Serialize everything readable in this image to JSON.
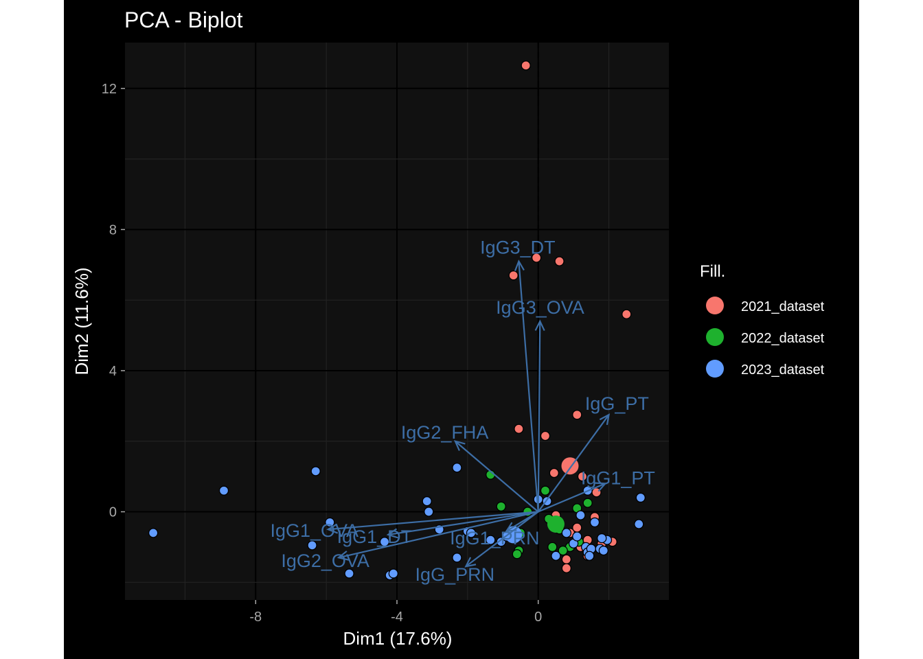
{
  "chart_data": {
    "type": "scatter",
    "title": "PCA - Biplot",
    "xlabel": "Dim1 (17.6%)",
    "ylabel": "Dim2 (11.6%)",
    "xlim": [
      -11.7,
      3.7
    ],
    "ylim": [
      -2.5,
      13.3
    ],
    "xticks": [
      -8,
      -4,
      0
    ],
    "xtick_labels": [
      "-8",
      "-4",
      "0"
    ],
    "yticks": [
      0,
      4,
      8,
      12
    ],
    "ytick_labels": [
      "0",
      "4",
      "8",
      "12"
    ],
    "grid": true,
    "legend": {
      "title": "Fill.",
      "position": "right",
      "entries": [
        "2021_dataset",
        "2022_dataset",
        "2023_dataset"
      ]
    },
    "colors": {
      "2021_dataset": "#f8766d",
      "2022_dataset": "#1eb12e",
      "2023_dataset": "#619cff",
      "arrow": "#3d6ea6",
      "panel": "#111111",
      "grid": "#222222"
    },
    "series": [
      {
        "name": "2021_dataset",
        "points": [
          [
            -0.35,
            12.65
          ],
          [
            -0.05,
            7.2
          ],
          [
            0.6,
            7.1
          ],
          [
            -0.7,
            6.7
          ],
          [
            2.5,
            5.6
          ],
          [
            1.1,
            2.75
          ],
          [
            -0.55,
            2.35
          ],
          [
            0.2,
            2.15
          ],
          [
            0.45,
            1.1
          ],
          [
            1.25,
            1.0
          ],
          [
            1.65,
            0.55
          ],
          [
            0.5,
            -0.1
          ],
          [
            1.6,
            -0.15
          ],
          [
            0.9,
            -0.6
          ],
          [
            1.4,
            -0.8
          ],
          [
            1.2,
            -1.0
          ],
          [
            1.8,
            -0.9
          ],
          [
            2.1,
            -0.85
          ],
          [
            0.8,
            -1.35
          ],
          [
            1.4,
            -1.25
          ],
          [
            0.8,
            -1.6
          ],
          [
            1.1,
            -0.45
          ]
        ],
        "centroid": [
          0.9,
          1.3
        ]
      },
      {
        "name": "2022_dataset",
        "points": [
          [
            -1.35,
            1.05
          ],
          [
            0.2,
            0.6
          ],
          [
            -1.05,
            0.15
          ],
          [
            -0.3,
            0.0
          ],
          [
            0.3,
            -0.2
          ],
          [
            1.1,
            0.1
          ],
          [
            1.4,
            0.25
          ],
          [
            0.6,
            -0.5
          ],
          [
            -0.55,
            -1.1
          ],
          [
            -0.6,
            -1.2
          ],
          [
            -0.5,
            -0.6
          ],
          [
            0.9,
            -1.0
          ],
          [
            0.7,
            -1.1
          ],
          [
            0.4,
            -1.0
          ],
          [
            1.15,
            -0.85
          ]
        ],
        "centroid": [
          0.5,
          -0.35
        ]
      },
      {
        "name": "2023_dataset",
        "points": [
          [
            -10.9,
            -0.6
          ],
          [
            -8.9,
            0.6
          ],
          [
            -6.3,
            1.15
          ],
          [
            -2.3,
            1.25
          ],
          [
            -3.15,
            0.3
          ],
          [
            -3.1,
            0.0
          ],
          [
            -5.9,
            -0.3
          ],
          [
            -2.8,
            -0.5
          ],
          [
            -2.0,
            -0.55
          ],
          [
            -1.9,
            -0.6
          ],
          [
            -6.4,
            -0.95
          ],
          [
            -4.35,
            -0.85
          ],
          [
            -2.3,
            -1.3
          ],
          [
            -5.35,
            -1.75
          ],
          [
            -4.2,
            -1.8
          ],
          [
            -4.1,
            -1.75
          ],
          [
            -1.35,
            -0.8
          ],
          [
            -1.05,
            -0.85
          ],
          [
            -0.9,
            -0.7
          ],
          [
            0.0,
            0.35
          ],
          [
            0.25,
            0.3
          ],
          [
            1.4,
            0.6
          ],
          [
            1.2,
            -0.1
          ],
          [
            2.9,
            0.4
          ],
          [
            2.85,
            -0.35
          ],
          [
            1.6,
            -0.3
          ],
          [
            0.5,
            -1.25
          ],
          [
            1.0,
            -0.9
          ],
          [
            1.35,
            -1.0
          ],
          [
            1.4,
            -1.15
          ],
          [
            1.5,
            -1.05
          ],
          [
            1.75,
            -1.05
          ],
          [
            1.85,
            -1.1
          ],
          [
            1.95,
            -0.8
          ],
          [
            1.8,
            -0.75
          ],
          [
            1.45,
            -1.25
          ],
          [
            1.1,
            -0.7
          ],
          [
            0.8,
            -0.6
          ]
        ],
        "centroid": [
          -0.7,
          -0.65
        ]
      }
    ],
    "variables": [
      {
        "name": "IgG3_DT",
        "x": -0.55,
        "y": 7.1
      },
      {
        "name": "IgG3_OVA",
        "x": 0.05,
        "y": 5.4
      },
      {
        "name": "IgG_PT",
        "x": 2.0,
        "y": 2.75
      },
      {
        "name": "IgG2_FHA",
        "x": -2.35,
        "y": 2.0
      },
      {
        "name": "IgG1_PT",
        "x": 1.9,
        "y": 0.8
      },
      {
        "name": "IgG1_OVA",
        "x": -5.95,
        "y": -0.5
      },
      {
        "name": "IgG1_DT",
        "x": -4.25,
        "y": -0.65
      },
      {
        "name": "IgG1_PRN",
        "x": -0.9,
        "y": -0.55
      },
      {
        "name": "IgG2_OVA",
        "x": -5.65,
        "y": -1.3
      },
      {
        "name": "IgG_PRN",
        "x": -2.05,
        "y": -1.55
      }
    ]
  }
}
